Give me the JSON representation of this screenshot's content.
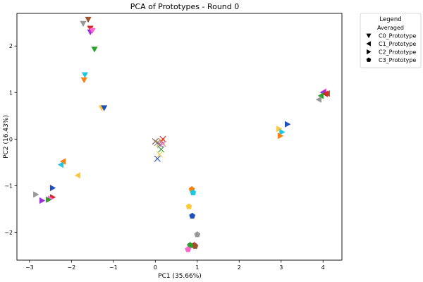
{
  "chart_data": {
    "type": "scatter",
    "title": "PCA of Prototypes - Round 0",
    "xlabel": "PC1 (35.66%)",
    "ylabel": "PC2 (16.43%)",
    "xlim": [
      -3.3,
      4.45
    ],
    "ylim": [
      -2.6,
      2.7
    ],
    "xticks": [
      -3,
      -2,
      -1,
      0,
      1,
      2,
      3,
      4
    ],
    "yticks": [
      -2,
      -1,
      0,
      1,
      2
    ],
    "grid": false,
    "legend": {
      "title": "Legend",
      "placement": "outside-top-right",
      "entries": [
        {
          "label": "Averaged",
          "marker": "none"
        },
        {
          "label": "C0_Prototype",
          "marker": "triangle-down"
        },
        {
          "label": "C1_Prototype",
          "marker": "triangle-left"
        },
        {
          "label": "C2_Prototype",
          "marker": "triangle-right"
        },
        {
          "label": "C3_Prototype",
          "marker": "pentagon"
        }
      ]
    },
    "series": [
      {
        "marker": "x",
        "points": [
          {
            "x": 0.0,
            "y": -0.05,
            "color": "#8c564b"
          },
          {
            "x": 0.05,
            "y": -0.08,
            "color": "#7f7f7f"
          },
          {
            "x": 0.1,
            "y": -0.1,
            "color": "#bcbd22"
          },
          {
            "x": 0.15,
            "y": -0.05,
            "color": "#ff7f0e"
          },
          {
            "x": 0.18,
            "y": 0.0,
            "color": "#d62728"
          },
          {
            "x": 0.12,
            "y": -0.12,
            "color": "#9467bd"
          },
          {
            "x": 0.14,
            "y": -0.22,
            "color": "#2ca02c"
          },
          {
            "x": 0.18,
            "y": -0.1,
            "color": "#e377c2"
          },
          {
            "x": 0.05,
            "y": -0.42,
            "color": "#1f4fbf"
          },
          {
            "x": 0.1,
            "y": -0.33,
            "color": "#ffc83d"
          }
        ]
      },
      {
        "marker": "triangle-down",
        "points": [
          {
            "x": -1.6,
            "y": 2.57,
            "color": "#a0522d"
          },
          {
            "x": -1.72,
            "y": 2.48,
            "color": "#999999"
          },
          {
            "x": -1.55,
            "y": 2.38,
            "color": "#d62728"
          },
          {
            "x": -1.55,
            "y": 2.3,
            "color": "#9b30d9"
          },
          {
            "x": -1.5,
            "y": 2.33,
            "color": "#ff66cc"
          },
          {
            "x": -1.45,
            "y": 1.93,
            "color": "#2ca02c"
          },
          {
            "x": -1.68,
            "y": 1.38,
            "color": "#1ec8e0"
          },
          {
            "x": -1.7,
            "y": 1.27,
            "color": "#ff7f0e"
          },
          {
            "x": -1.28,
            "y": 0.67,
            "color": "#ffc83d"
          },
          {
            "x": -1.22,
            "y": 0.67,
            "color": "#1f4fbf"
          }
        ]
      },
      {
        "marker": "triangle-left",
        "points": [
          {
            "x": 4.1,
            "y": 0.98,
            "color": "#a0522d"
          },
          {
            "x": 4.02,
            "y": 1.02,
            "color": "#ff66cc"
          },
          {
            "x": 4.0,
            "y": 1.0,
            "color": "#9b30d9"
          },
          {
            "x": 4.05,
            "y": 0.97,
            "color": "#d62728"
          },
          {
            "x": 3.95,
            "y": 0.93,
            "color": "#2ca02c"
          },
          {
            "x": 3.9,
            "y": 0.85,
            "color": "#999999"
          },
          {
            "x": -2.2,
            "y": -0.48,
            "color": "#ff7f0e"
          },
          {
            "x": -2.25,
            "y": -0.55,
            "color": "#1ec8e0"
          },
          {
            "x": -1.85,
            "y": -0.78,
            "color": "#ffc83d"
          }
        ]
      },
      {
        "marker": "triangle-right",
        "points": [
          {
            "x": 3.15,
            "y": 0.32,
            "color": "#1f4fbf"
          },
          {
            "x": 2.95,
            "y": 0.22,
            "color": "#ffc83d"
          },
          {
            "x": 3.02,
            "y": 0.15,
            "color": "#1ec8e0"
          },
          {
            "x": 2.98,
            "y": 0.07,
            "color": "#ff7f0e"
          },
          {
            "x": -2.45,
            "y": -1.05,
            "color": "#1f4fbf"
          },
          {
            "x": -2.85,
            "y": -1.19,
            "color": "#999999"
          },
          {
            "x": -2.45,
            "y": -1.25,
            "color": "#d62728"
          },
          {
            "x": -2.5,
            "y": -1.28,
            "color": "#ff66cc"
          },
          {
            "x": -2.55,
            "y": -1.3,
            "color": "#2ca02c"
          },
          {
            "x": -2.7,
            "y": -1.32,
            "color": "#9b30d9"
          }
        ]
      },
      {
        "marker": "pentagon",
        "points": [
          {
            "x": 0.87,
            "y": -1.08,
            "color": "#ff7f0e"
          },
          {
            "x": 0.9,
            "y": -1.15,
            "color": "#1ec8e0"
          },
          {
            "x": 0.8,
            "y": -1.45,
            "color": "#ffc83d"
          },
          {
            "x": 0.88,
            "y": -1.65,
            "color": "#1f4fbf"
          },
          {
            "x": 1.0,
            "y": -2.05,
            "color": "#999999"
          },
          {
            "x": 0.93,
            "y": -2.28,
            "color": "#d62728"
          },
          {
            "x": 0.95,
            "y": -2.3,
            "color": "#a0522d"
          },
          {
            "x": 0.83,
            "y": -2.28,
            "color": "#2ca02c"
          },
          {
            "x": 0.78,
            "y": -2.37,
            "color": "#ff66cc"
          }
        ]
      }
    ]
  }
}
